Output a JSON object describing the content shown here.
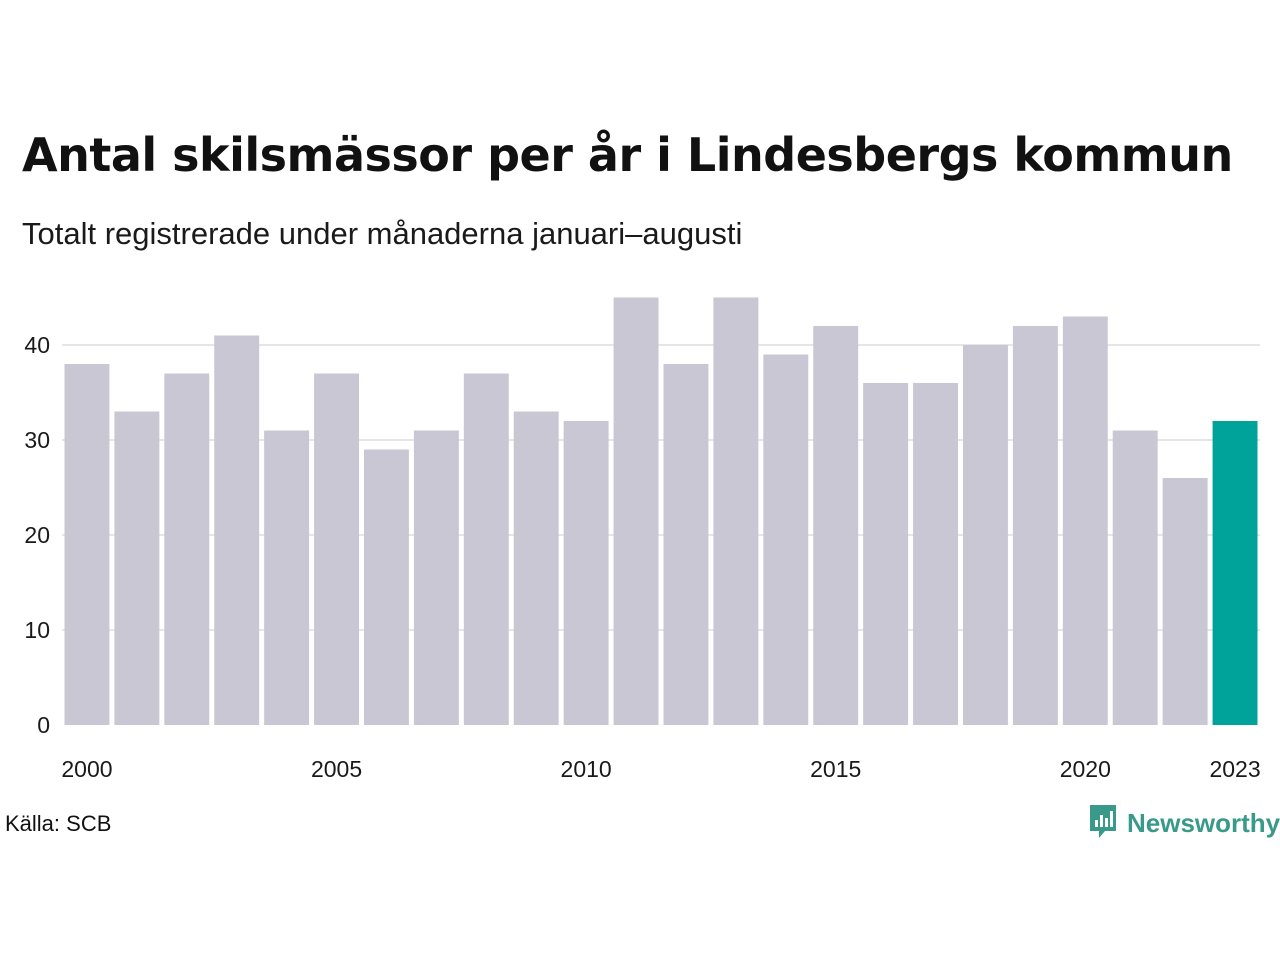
{
  "title": "Antal skilsmässor per år i Lindesbergs kommun",
  "subtitle": "Totalt registrerade under månaderna januari–augusti",
  "source": "Källa: SCB",
  "brand": {
    "name": "Newsworthy",
    "icon": "newsworthy-logo-icon",
    "color": "#3a9a8a"
  },
  "colors": {
    "bar": "#c8c7d3",
    "highlight": "#00a39a",
    "grid": "#e6e6e6"
  },
  "chart_data": {
    "type": "bar",
    "categories": [
      "2000",
      "2001",
      "2002",
      "2003",
      "2004",
      "2005",
      "2006",
      "2007",
      "2008",
      "2009",
      "2010",
      "2011",
      "2012",
      "2013",
      "2014",
      "2015",
      "2016",
      "2017",
      "2018",
      "2019",
      "2020",
      "2021",
      "2022",
      "2023"
    ],
    "values": [
      38,
      33,
      37,
      41,
      31,
      37,
      29,
      31,
      37,
      33,
      32,
      45,
      38,
      45,
      39,
      42,
      36,
      36,
      40,
      42,
      43,
      31,
      26,
      32
    ],
    "highlight_category": "2023",
    "x_tick_labels": [
      "2000",
      "2005",
      "2010",
      "2015",
      "2020",
      "2023"
    ],
    "y_ticks": [
      0,
      10,
      20,
      30,
      40
    ],
    "ylim": [
      0,
      45
    ],
    "grid": true,
    "legend": "none",
    "title": "Antal skilsmässor per år i Lindesbergs kommun",
    "subtitle": "Totalt registrerade under månaderna januari–augusti",
    "xlabel": "",
    "ylabel": ""
  }
}
